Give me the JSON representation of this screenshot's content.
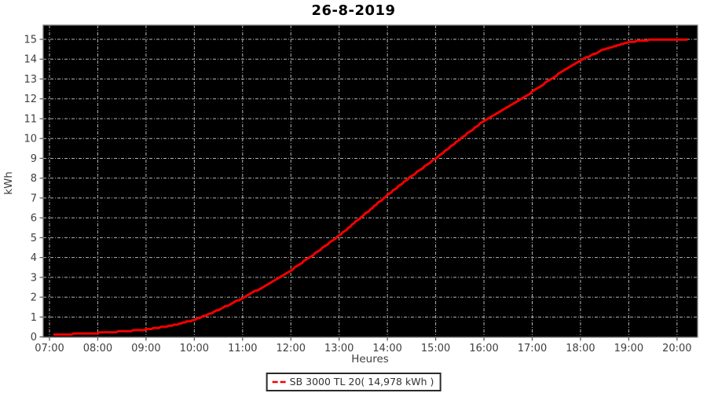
{
  "title": "26-8-2019",
  "legend": {
    "label": "SB 3000 TL 20( 14,978 kWh )"
  },
  "chart_data": {
    "type": "line",
    "title": "26-8-2019",
    "xlabel": "Heures",
    "ylabel": "kWh",
    "x_unit": "hour_of_day",
    "xlim_hours": [
      6.87,
      20.42
    ],
    "ylim": [
      0,
      15.75
    ],
    "xticks": [
      "07:00",
      "08:00",
      "09:00",
      "10:00",
      "11:00",
      "12:00",
      "13:00",
      "14:00",
      "15:00",
      "16:00",
      "17:00",
      "18:00",
      "19:00",
      "20:00"
    ],
    "xtick_hours": [
      7,
      8,
      9,
      10,
      11,
      12,
      13,
      14,
      15,
      16,
      17,
      18,
      19,
      20
    ],
    "yticks": [
      0,
      1,
      2,
      3,
      4,
      5,
      6,
      7,
      8,
      9,
      10,
      11,
      12,
      13,
      14,
      15
    ],
    "grid": true,
    "legend_position": "bottom-center",
    "colors": {
      "plot_background": "#000000",
      "grid": "#b4b4b4",
      "frame": "#787878",
      "tick": "#555555",
      "tick_label": "#404040",
      "axis_label": "#404040",
      "series_line": "#f40000"
    },
    "series": [
      {
        "name": "SB 3000 TL 20",
        "legend_label": "SB 3000 TL 20( 14,978 kWh )",
        "total_kwh_display": "14,978",
        "color": "#f40000",
        "points": [
          {
            "time": "07:05",
            "kwh": 0.1
          },
          {
            "time": "07:30",
            "kwh": 0.15
          },
          {
            "time": "08:00",
            "kwh": 0.2
          },
          {
            "time": "08:30",
            "kwh": 0.27
          },
          {
            "time": "09:00",
            "kwh": 0.37
          },
          {
            "time": "09:30",
            "kwh": 0.55
          },
          {
            "time": "10:00",
            "kwh": 0.85
          },
          {
            "time": "10:30",
            "kwh": 1.35
          },
          {
            "time": "11:00",
            "kwh": 1.95
          },
          {
            "time": "11:30",
            "kwh": 2.62
          },
          {
            "time": "12:00",
            "kwh": 3.35
          },
          {
            "time": "12:30",
            "kwh": 4.2
          },
          {
            "time": "13:00",
            "kwh": 5.1
          },
          {
            "time": "13:30",
            "kwh": 6.12
          },
          {
            "time": "14:00",
            "kwh": 7.15
          },
          {
            "time": "14:30",
            "kwh": 8.1
          },
          {
            "time": "15:00",
            "kwh": 9.0
          },
          {
            "time": "15:30",
            "kwh": 9.95
          },
          {
            "time": "16:00",
            "kwh": 10.9
          },
          {
            "time": "16:30",
            "kwh": 11.6
          },
          {
            "time": "17:00",
            "kwh": 12.35
          },
          {
            "time": "17:30",
            "kwh": 13.18
          },
          {
            "time": "18:00",
            "kwh": 13.95
          },
          {
            "time": "18:30",
            "kwh": 14.5
          },
          {
            "time": "19:00",
            "kwh": 14.85
          },
          {
            "time": "19:15",
            "kwh": 14.93
          },
          {
            "time": "19:30",
            "kwh": 14.97
          },
          {
            "time": "20:00",
            "kwh": 14.97
          },
          {
            "time": "20:13",
            "kwh": 14.978
          }
        ]
      }
    ]
  }
}
